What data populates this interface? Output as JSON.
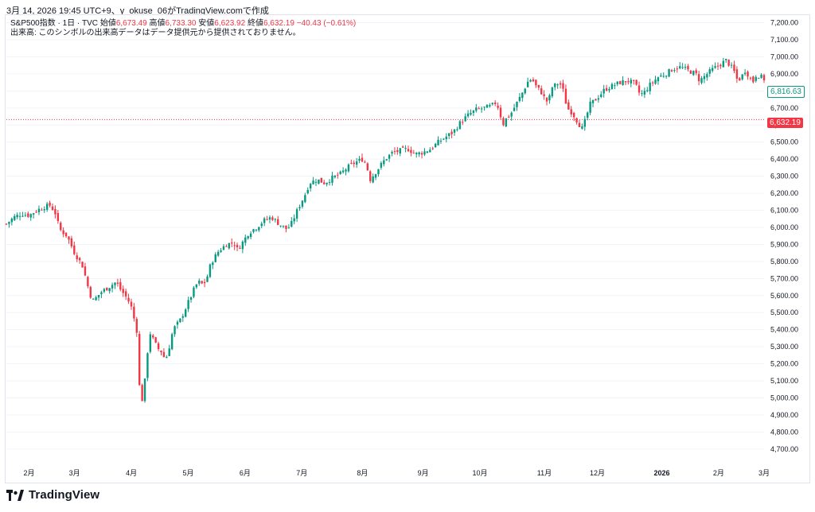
{
  "header": {
    "text": "3月 14, 2026 19:45 UTC+9、y_okuse_06がTradingView.comで作成"
  },
  "legend": {
    "symbol": "S&P500指数 · 1日 · TVC",
    "open_label": "始値",
    "open_value": "6,673.49",
    "high_label": "高値",
    "high_value": "6,733.30",
    "low_label": "安値",
    "low_value": "6,623.92",
    "close_label": "終値",
    "close_value": "6,632.19",
    "change": "−40.43 (−0.61%)",
    "volume_note": "出来高: このシンボルの出来高データはデータ提供元から提供されておりません。"
  },
  "price_tags": {
    "current": "6,816.63",
    "close": "6,632.19"
  },
  "logo": {
    "text": "TradingView"
  },
  "colors": {
    "up": "#089981",
    "down": "#f23645",
    "grid": "#f0f3fa",
    "text": "#131722"
  },
  "chart_data": {
    "type": "candlestick",
    "title": "S&P500指数 · 1日 · TVC",
    "y_axis_labels": [
      "4,700.00",
      "4,800.00",
      "4,900.00",
      "5,000.00",
      "5,100.00",
      "5,200.00",
      "5,300.00",
      "5,400.00",
      "5,500.00",
      "5,600.00",
      "5,700.00",
      "5,800.00",
      "5,900.00",
      "6,000.00",
      "6,100.00",
      "6,200.00",
      "6,300.00",
      "6,400.00",
      "6,500.00",
      "6,600.00",
      "6,700.00",
      "6,800.00",
      "6,900.00",
      "7,000.00",
      "7,100.00",
      "7,200.00"
    ],
    "ylim": [
      4620,
      7240
    ],
    "x_axis_labels": [
      {
        "label": "2月",
        "t": 0.03,
        "bold": false
      },
      {
        "label": "3月",
        "t": 0.09,
        "bold": false
      },
      {
        "label": "4月",
        "t": 0.165,
        "bold": false
      },
      {
        "label": "5月",
        "t": 0.24,
        "bold": false
      },
      {
        "label": "6月",
        "t": 0.315,
        "bold": false
      },
      {
        "label": "7月",
        "t": 0.39,
        "bold": false
      },
      {
        "label": "8月",
        "t": 0.47,
        "bold": false
      },
      {
        "label": "9月",
        "t": 0.55,
        "bold": false
      },
      {
        "label": "10月",
        "t": 0.625,
        "bold": false
      },
      {
        "label": "11月",
        "t": 0.71,
        "bold": false
      },
      {
        "label": "12月",
        "t": 0.78,
        "bold": false
      },
      {
        "label": "2026",
        "t": 0.865,
        "bold": true
      },
      {
        "label": "2月",
        "t": 0.94,
        "bold": false
      },
      {
        "label": "3月",
        "t": 1.0,
        "bold": false
      }
    ],
    "close_line": 6632.19,
    "close_path": [
      [
        0.0,
        6020
      ],
      [
        0.01,
        6060
      ],
      [
        0.02,
        6080
      ],
      [
        0.03,
        6070
      ],
      [
        0.04,
        6100
      ],
      [
        0.05,
        6120
      ],
      [
        0.058,
        6130
      ],
      [
        0.065,
        6080
      ],
      [
        0.07,
        5990
      ],
      [
        0.08,
        5950
      ],
      [
        0.09,
        5850
      ],
      [
        0.1,
        5780
      ],
      [
        0.105,
        5700
      ],
      [
        0.11,
        5610
      ],
      [
        0.115,
        5570
      ],
      [
        0.125,
        5620
      ],
      [
        0.135,
        5650
      ],
      [
        0.145,
        5680
      ],
      [
        0.15,
        5640
      ],
      [
        0.16,
        5580
      ],
      [
        0.165,
        5530
      ],
      [
        0.172,
        5400
      ],
      [
        0.175,
        5100
      ],
      [
        0.178,
        4960
      ],
      [
        0.182,
        5060
      ],
      [
        0.186,
        5260
      ],
      [
        0.19,
        5380
      ],
      [
        0.195,
        5330
      ],
      [
        0.2,
        5290
      ],
      [
        0.205,
        5270
      ],
      [
        0.21,
        5220
      ],
      [
        0.215,
        5300
      ],
      [
        0.22,
        5400
      ],
      [
        0.23,
        5460
      ],
      [
        0.24,
        5560
      ],
      [
        0.245,
        5610
      ],
      [
        0.25,
        5660
      ],
      [
        0.255,
        5680
      ],
      [
        0.26,
        5660
      ],
      [
        0.265,
        5710
      ],
      [
        0.27,
        5790
      ],
      [
        0.28,
        5860
      ],
      [
        0.29,
        5900
      ],
      [
        0.3,
        5910
      ],
      [
        0.305,
        5870
      ],
      [
        0.31,
        5900
      ],
      [
        0.32,
        5970
      ],
      [
        0.33,
        6000
      ],
      [
        0.34,
        6040
      ],
      [
        0.35,
        6060
      ],
      [
        0.36,
        6020
      ],
      [
        0.37,
        5990
      ],
      [
        0.375,
        6010
      ],
      [
        0.385,
        6110
      ],
      [
        0.395,
        6200
      ],
      [
        0.4,
        6260
      ],
      [
        0.41,
        6280
      ],
      [
        0.42,
        6260
      ],
      [
        0.43,
        6290
      ],
      [
        0.44,
        6310
      ],
      [
        0.45,
        6350
      ],
      [
        0.46,
        6380
      ],
      [
        0.47,
        6400
      ],
      [
        0.475,
        6370
      ],
      [
        0.48,
        6280
      ],
      [
        0.49,
        6340
      ],
      [
        0.5,
        6400
      ],
      [
        0.51,
        6440
      ],
      [
        0.52,
        6450
      ],
      [
        0.53,
        6460
      ],
      [
        0.54,
        6430
      ],
      [
        0.55,
        6440
      ],
      [
        0.56,
        6460
      ],
      [
        0.57,
        6500
      ],
      [
        0.58,
        6530
      ],
      [
        0.59,
        6560
      ],
      [
        0.6,
        6620
      ],
      [
        0.61,
        6660
      ],
      [
        0.62,
        6690
      ],
      [
        0.63,
        6700
      ],
      [
        0.64,
        6710
      ],
      [
        0.645,
        6730
      ],
      [
        0.65,
        6700
      ],
      [
        0.655,
        6600
      ],
      [
        0.66,
        6640
      ],
      [
        0.665,
        6660
      ],
      [
        0.67,
        6700
      ],
      [
        0.68,
        6780
      ],
      [
        0.69,
        6870
      ],
      [
        0.695,
        6860
      ],
      [
        0.7,
        6820
      ],
      [
        0.705,
        6800
      ],
      [
        0.71,
        6760
      ],
      [
        0.715,
        6730
      ],
      [
        0.72,
        6820
      ],
      [
        0.73,
        6850
      ],
      [
        0.735,
        6800
      ],
      [
        0.74,
        6700
      ],
      [
        0.745,
        6680
      ],
      [
        0.75,
        6650
      ],
      [
        0.755,
        6610
      ],
      [
        0.76,
        6580
      ],
      [
        0.765,
        6640
      ],
      [
        0.77,
        6720
      ],
      [
        0.78,
        6760
      ],
      [
        0.79,
        6810
      ],
      [
        0.8,
        6830
      ],
      [
        0.81,
        6850
      ],
      [
        0.82,
        6860
      ],
      [
        0.83,
        6840
      ],
      [
        0.835,
        6790
      ],
      [
        0.84,
        6780
      ],
      [
        0.85,
        6840
      ],
      [
        0.86,
        6880
      ],
      [
        0.87,
        6900
      ],
      [
        0.88,
        6930
      ],
      [
        0.89,
        6940
      ],
      [
        0.9,
        6920
      ],
      [
        0.91,
        6900
      ],
      [
        0.915,
        6860
      ],
      [
        0.92,
        6880
      ],
      [
        0.93,
        6920
      ],
      [
        0.94,
        6950
      ],
      [
        0.95,
        6980
      ],
      [
        0.96,
        6920
      ],
      [
        0.965,
        6860
      ],
      [
        0.97,
        6880
      ],
      [
        0.975,
        6920
      ],
      [
        0.98,
        6890
      ],
      [
        0.985,
        6850
      ],
      [
        0.99,
        6900
      ],
      [
        1.0,
        6870
      ]
    ]
  }
}
